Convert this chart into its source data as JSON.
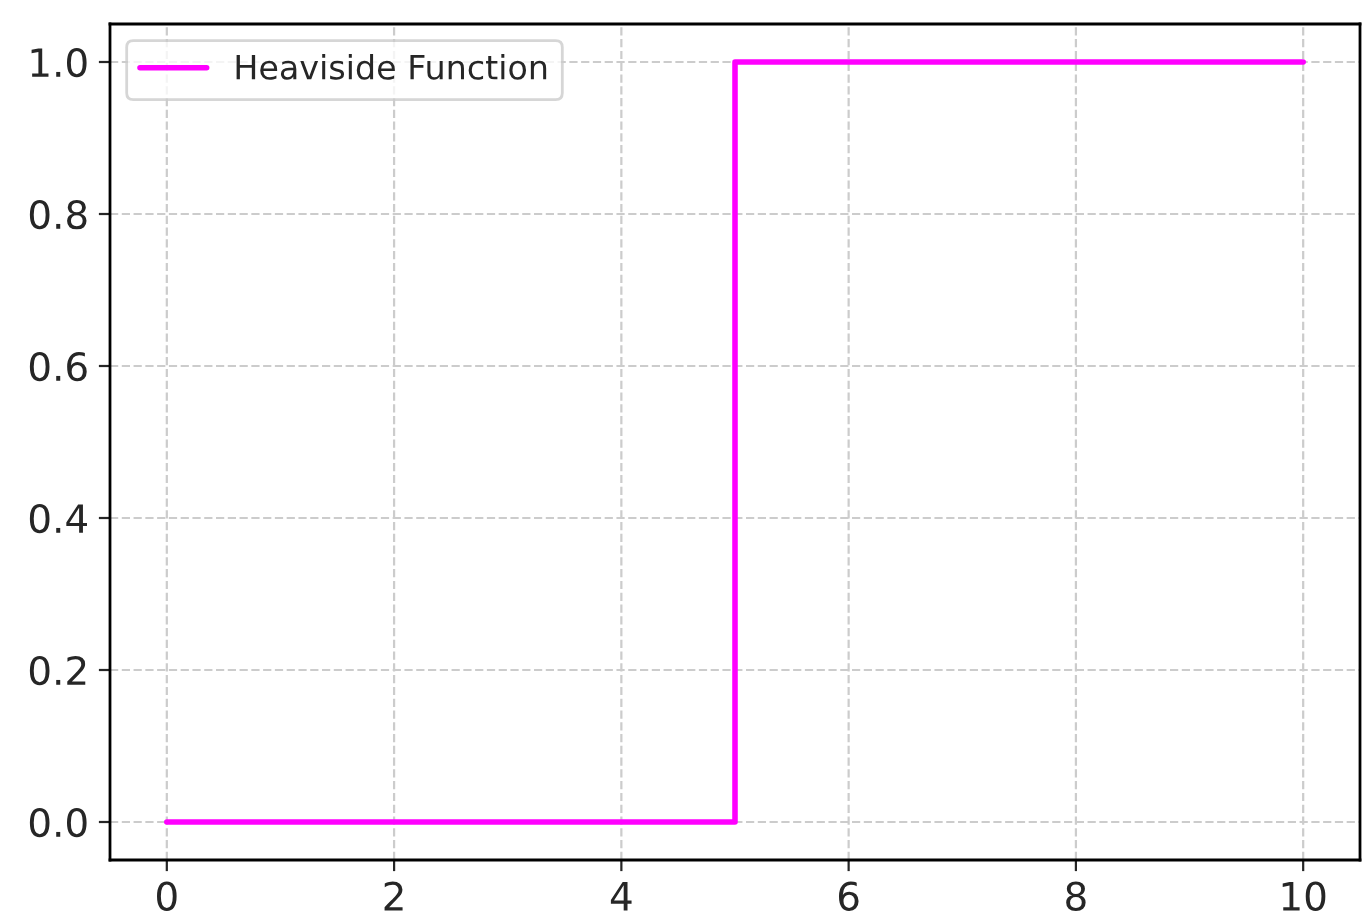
{
  "chart_data": {
    "type": "step",
    "x": [
      0,
      5,
      10
    ],
    "series": [
      {
        "name": "Heaviside Function",
        "color": "#ff00ff",
        "values": [
          0,
          1,
          1
        ]
      }
    ],
    "xlim": [
      -0.5,
      10.5
    ],
    "xticks": [
      0,
      2,
      4,
      6,
      8,
      10
    ],
    "ylim": [
      -0.05,
      1.05
    ],
    "yticks": [
      {
        "value": 0,
        "label": "0.0"
      },
      {
        "value": 0.2,
        "label": "0.2"
      },
      {
        "value": 0.4,
        "label": "0.4"
      },
      {
        "value": 0.6,
        "label": "0.6"
      },
      {
        "value": 0.8,
        "label": "0.8"
      },
      {
        "value": 1,
        "label": "1.0"
      }
    ],
    "grid": true,
    "legend": "top left",
    "line_style": "solid"
  }
}
